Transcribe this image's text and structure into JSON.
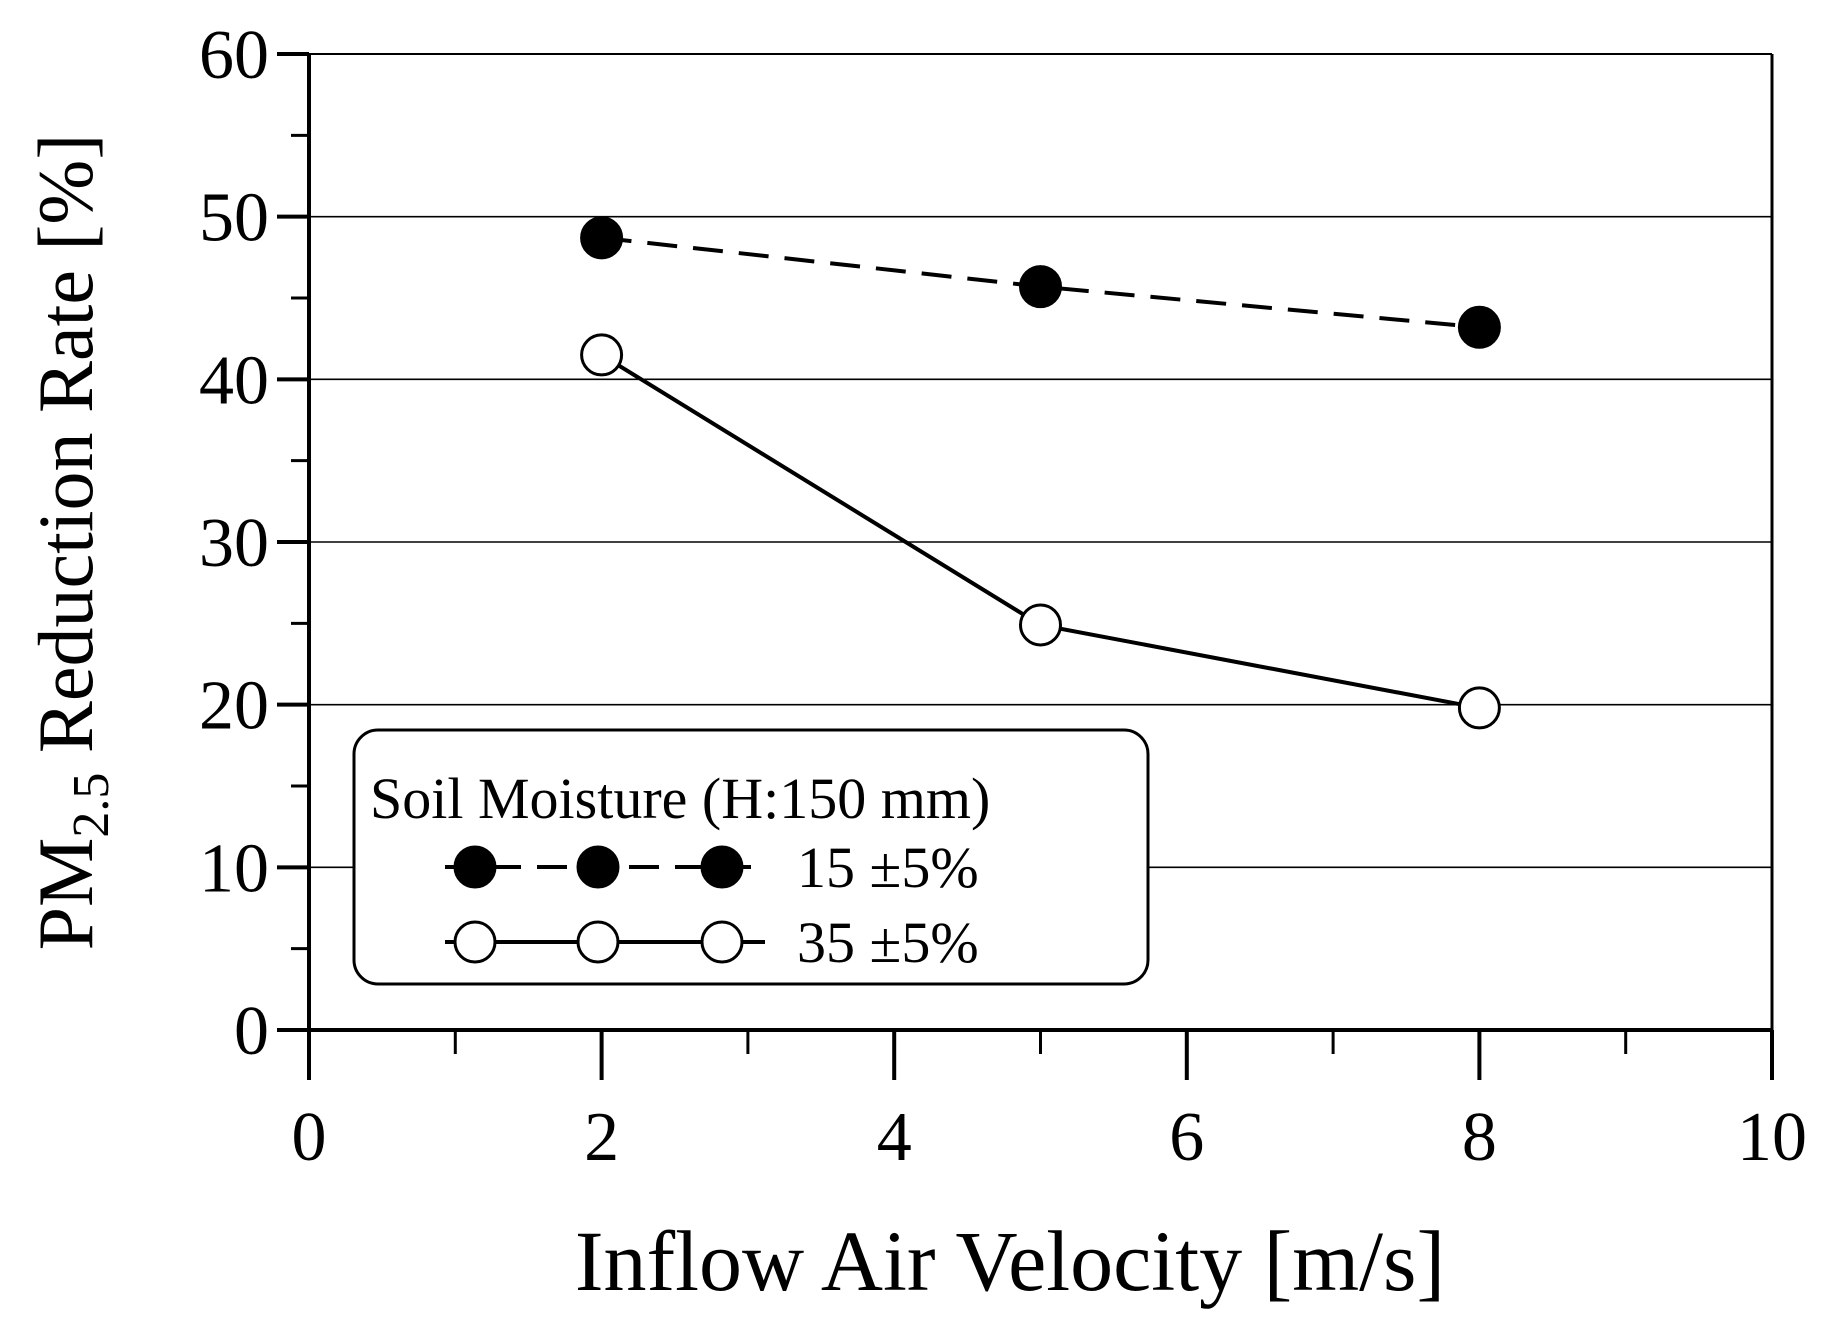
{
  "chart_data": {
    "type": "line",
    "title": "",
    "xlabel": "Inflow Air Velocity [m/s]",
    "ylabel": {
      "prefix": "PM",
      "subscript": "2.5",
      "suffix": " Reduction Rate [%]"
    },
    "xlim": [
      0,
      10
    ],
    "ylim": [
      0,
      60
    ],
    "x_ticks": [
      0,
      2,
      4,
      6,
      8,
      10
    ],
    "x_tick_labels": [
      "0",
      "2",
      "4",
      "6",
      "8",
      "10"
    ],
    "y_ticks": [
      0,
      10,
      20,
      30,
      40,
      50,
      60
    ],
    "y_tick_labels": [
      "0",
      "10",
      "20",
      "30",
      "40",
      "50",
      "60"
    ],
    "grid": "horizontal",
    "legend": {
      "title": "Soil Moisture (H:150 mm)",
      "placement": "bottom-left"
    },
    "series": [
      {
        "name": "15 ±5%",
        "x": [
          2,
          5,
          8
        ],
        "values": [
          48.7,
          45.7,
          43.2
        ],
        "marker": "filled-circle",
        "line": "dashed"
      },
      {
        "name": "35 ±5%",
        "x": [
          2,
          5,
          8
        ],
        "values": [
          41.5,
          24.9,
          19.8
        ],
        "marker": "open-circle",
        "line": "solid"
      }
    ],
    "colors": {
      "line": "#000000",
      "grid": "#000000",
      "background": "#ffffff"
    }
  }
}
